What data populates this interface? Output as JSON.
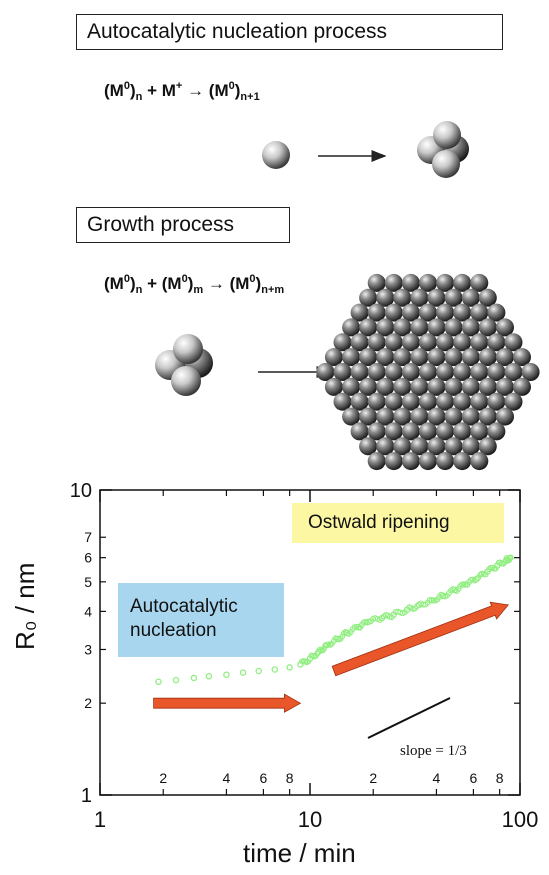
{
  "diagram": {
    "nucleation_label": "Autocatalytic nucleation process",
    "growth_label": "Growth process",
    "eq1": {
      "a": "(M",
      "a_sup": "0",
      "a_close": ")",
      "a_sub": "n",
      "plus": " + M",
      "plus_sup": "+",
      "arrow": " → (M",
      "b_sup": "0",
      "b_close": ")",
      "b_sub": "n+1"
    },
    "eq2": {
      "a": "(M",
      "a_sup": "0",
      "a_close": ")",
      "a_sub": "n",
      "plus": " + (M",
      "plus_sup": "0",
      "plus_close": ")",
      "plus_sub": "m",
      "arrow": " → (M",
      "b_sup": "0",
      "b_close": ")",
      "b_sub": "n+m"
    }
  },
  "chart_data": {
    "type": "scatter",
    "x_scale": "log",
    "y_scale": "log",
    "xlim": [
      1,
      100
    ],
    "ylim": [
      1,
      10
    ],
    "xlabel": "time / min",
    "ylabel": "R₀ / nm",
    "x_major_ticks": [
      "1",
      "10",
      "100"
    ],
    "x_minor_ticks": [
      "2",
      "4",
      "6",
      "8",
      "2",
      "4",
      "6",
      "8"
    ],
    "x_minor_values": [
      2,
      4,
      6,
      8,
      20,
      40,
      60,
      80
    ],
    "y_major_ticks": [
      "1",
      "10"
    ],
    "y_minor_ticks": [
      "2",
      "3",
      "4",
      "5",
      "6",
      "7"
    ],
    "y_minor_values": [
      2,
      3,
      4,
      5,
      6,
      7
    ],
    "series_color": "#90ee80",
    "series": [
      {
        "x": [
          1.9,
          2.3,
          2.8,
          3.3,
          4,
          4.8,
          5.7,
          6.8,
          8,
          9,
          10,
          11,
          12,
          13.5,
          15,
          17,
          19,
          22,
          25,
          29,
          33,
          38,
          43,
          49,
          55,
          62,
          70,
          78,
          86,
          90
        ],
        "y": [
          2.35,
          2.38,
          2.42,
          2.45,
          2.48,
          2.52,
          2.55,
          2.58,
          2.62,
          2.68,
          2.8,
          2.95,
          3.1,
          3.25,
          3.4,
          3.55,
          3.7,
          3.8,
          3.9,
          4.05,
          4.2,
          4.35,
          4.5,
          4.7,
          4.9,
          5.1,
          5.4,
          5.65,
          5.9,
          6.0
        ]
      }
    ],
    "annotations": {
      "ostwald": "Ostwald ripening",
      "autocatalytic_line1": "Autocatalytic",
      "autocatalytic_line2": "nucleation",
      "slope": "slope = 1/3"
    },
    "arrow_color": "#e8562a"
  }
}
